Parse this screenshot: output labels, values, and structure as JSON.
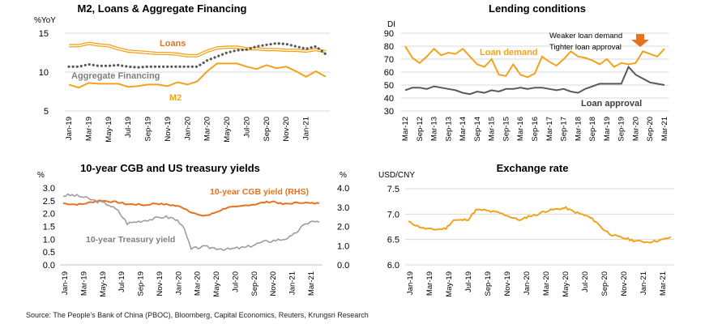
{
  "source": "Source: The People's Bank of China (PBOC), Bloomberg, Capital Economics, Reuters, Krungsri Research",
  "colors": {
    "orange": "#f4a21d",
    "darkorange": "#e8711f",
    "gray": "#a6a6a6",
    "dark": "#595959",
    "grid": "#d9d9d9"
  },
  "chart_data": [
    {
      "id": "m2",
      "type": "line",
      "title": "M2, Loans & Aggregate Financing",
      "ylabel": "%YoY",
      "ylim": [
        5,
        15
      ],
      "yticks": [
        "5",
        "10",
        "15"
      ],
      "xticks": [
        "Jan-19",
        "Mar-19",
        "May-19",
        "Jul-19",
        "Sep-19",
        "Nov-19",
        "Jan-20",
        "Mar-20",
        "May-20",
        "Jul-20",
        "Sep-20",
        "Nov-20",
        "Jan-21"
      ],
      "x": [
        "Jan-19",
        "Feb-19",
        "Mar-19",
        "Apr-19",
        "May-19",
        "Jun-19",
        "Jul-19",
        "Aug-19",
        "Sep-19",
        "Oct-19",
        "Nov-19",
        "Dec-19",
        "Jan-20",
        "Feb-20",
        "Mar-20",
        "Apr-20",
        "May-20",
        "Jun-20",
        "Jul-20",
        "Aug-20",
        "Sep-20",
        "Oct-20",
        "Nov-20",
        "Dec-20",
        "Jan-21",
        "Feb-21",
        "Mar-21"
      ],
      "grid": true,
      "series": [
        {
          "name": "Loans",
          "style": "double",
          "values": [
            13.4,
            13.4,
            13.7,
            13.5,
            13.4,
            13.0,
            12.7,
            12.6,
            12.5,
            12.4,
            12.4,
            12.3,
            12.1,
            12.1,
            12.7,
            13.1,
            13.2,
            13.2,
            13.0,
            13.0,
            12.9,
            12.9,
            12.8,
            12.8,
            12.7,
            12.9,
            12.6
          ]
        },
        {
          "name": "Aggregate Financing",
          "style": "dotted",
          "values": [
            10.7,
            10.7,
            11.0,
            10.8,
            10.8,
            10.9,
            10.7,
            10.6,
            10.7,
            10.7,
            10.7,
            10.7,
            10.7,
            10.7,
            11.5,
            12.0,
            12.5,
            12.8,
            12.9,
            13.3,
            13.5,
            13.7,
            13.6,
            13.3,
            13.0,
            13.3,
            12.3
          ]
        },
        {
          "name": "M2",
          "style": "solid",
          "values": [
            8.4,
            8.0,
            8.6,
            8.5,
            8.5,
            8.5,
            8.1,
            8.2,
            8.4,
            8.4,
            8.2,
            8.7,
            8.4,
            8.8,
            10.1,
            11.1,
            11.1,
            11.1,
            10.7,
            10.4,
            10.9,
            10.5,
            10.7,
            10.1,
            9.4,
            10.1,
            9.4
          ]
        }
      ],
      "annotations": [
        "Loans",
        "Aggregate Financing",
        "M2"
      ]
    },
    {
      "id": "lending",
      "type": "line",
      "title": "Lending conditions",
      "ylabel": "DI",
      "ylim": [
        30,
        90
      ],
      "yticks": [
        "30",
        "40",
        "50",
        "60",
        "70",
        "80",
        "90"
      ],
      "xticks": [
        "Mar-12",
        "Sep-12",
        "Mar-13",
        "Sep-13",
        "Mar-14",
        "Sep-14",
        "Mar-15",
        "Sep-15",
        "Mar-16",
        "Sep-16",
        "Mar-17",
        "Sep-17",
        "Mar-18",
        "Sep-18",
        "Mar-19",
        "Sep-19",
        "Mar-20",
        "Sep-20",
        "Mar-21"
      ],
      "grid": true,
      "series": [
        {
          "name": "Loan demand",
          "values": [
            80,
            71,
            67,
            72,
            78,
            73,
            75,
            74,
            78,
            72,
            66,
            64,
            70,
            58,
            57,
            66,
            58,
            56,
            59,
            72,
            68,
            65,
            70,
            76,
            72,
            71,
            69,
            66,
            70,
            64,
            67,
            66,
            67,
            76,
            74,
            72,
            78
          ]
        },
        {
          "name": "Loan approval",
          "values": [
            46,
            48,
            48,
            47,
            49,
            48,
            47,
            46,
            44,
            43,
            45,
            44,
            46,
            45,
            47,
            47,
            48,
            47,
            48,
            48,
            47,
            46,
            47,
            45,
            44,
            47,
            49,
            51,
            51,
            51,
            51,
            64,
            58,
            55,
            52,
            51,
            50
          ]
        }
      ],
      "annotations": [
        "Loan demand",
        "Loan approval",
        "Weaker loan demand",
        "Tighter loan approval"
      ]
    },
    {
      "id": "yields",
      "type": "line",
      "title": "10-year CGB and US treasury yields",
      "ylabel_left": "%",
      "ylabel_right": "%",
      "ylim_left": [
        0,
        3
      ],
      "ylim_right": [
        0,
        4
      ],
      "yticks_left": [
        "0.0",
        "0.5",
        "1.0",
        "1.5",
        "2.0",
        "2.5",
        "3.0"
      ],
      "yticks_right": [
        "0.0",
        "1.0",
        "2.0",
        "3.0",
        "4.0"
      ],
      "xticks": [
        "Jan-19",
        "Mar-19",
        "May-19",
        "Jul-19",
        "Sep-19",
        "Nov-19",
        "Jan-20",
        "Mar-20",
        "May-20",
        "Jul-20",
        "Sep-20",
        "Nov-20",
        "Jan-21",
        "Mar-21"
      ],
      "series": [
        {
          "name": "10-year CGB yield (RHS)",
          "axis": "right",
          "values": [
            3.2,
            3.15,
            3.15,
            3.25,
            3.35,
            3.3,
            3.25,
            3.15,
            3.15,
            3.1,
            3.2,
            3.15,
            3.1,
            3.0,
            2.75,
            2.55,
            2.6,
            2.8,
            3.0,
            3.0,
            3.1,
            3.15,
            3.25,
            3.3,
            3.15,
            3.2,
            3.25,
            3.2,
            3.2
          ]
        },
        {
          "name": "10-year Treasury yield",
          "axis": "left",
          "values": [
            2.7,
            2.72,
            2.66,
            2.55,
            2.45,
            2.35,
            2.1,
            1.62,
            1.68,
            1.75,
            1.8,
            1.88,
            1.82,
            1.6,
            0.6,
            0.7,
            0.68,
            0.65,
            0.6,
            0.65,
            0.68,
            0.8,
            0.9,
            0.95,
            1.0,
            1.1,
            1.45,
            1.7,
            1.66
          ]
        }
      ],
      "annotations": [
        "10-year CGB yield (RHS)",
        "10-year Treasury yield"
      ]
    },
    {
      "id": "fx",
      "type": "line",
      "title": "Exchange rate",
      "ylabel": "USD/CNY",
      "ylim": [
        6.0,
        7.5
      ],
      "yticks": [
        "6.0",
        "6.5",
        "7.0",
        "7.5"
      ],
      "xticks": [
        "Jan-19",
        "Mar-19",
        "May-19",
        "Jul-19",
        "Sep-19",
        "Nov-19",
        "Jan-20",
        "Mar-20",
        "May-20",
        "Jul-20",
        "Sep-20",
        "Nov-20",
        "Jan-21",
        "Mar-21"
      ],
      "series": [
        {
          "name": "USD/CNY",
          "values": [
            6.85,
            6.78,
            6.72,
            6.7,
            6.7,
            6.72,
            6.88,
            6.88,
            6.9,
            7.08,
            7.08,
            7.05,
            7.03,
            6.98,
            6.92,
            6.88,
            6.96,
            6.98,
            7.05,
            7.08,
            7.1,
            7.12,
            7.05,
            7.0,
            6.95,
            6.85,
            6.7,
            6.6,
            6.55,
            6.52,
            6.48,
            6.46,
            6.45,
            6.47,
            6.5,
            6.55
          ]
        }
      ]
    }
  ]
}
